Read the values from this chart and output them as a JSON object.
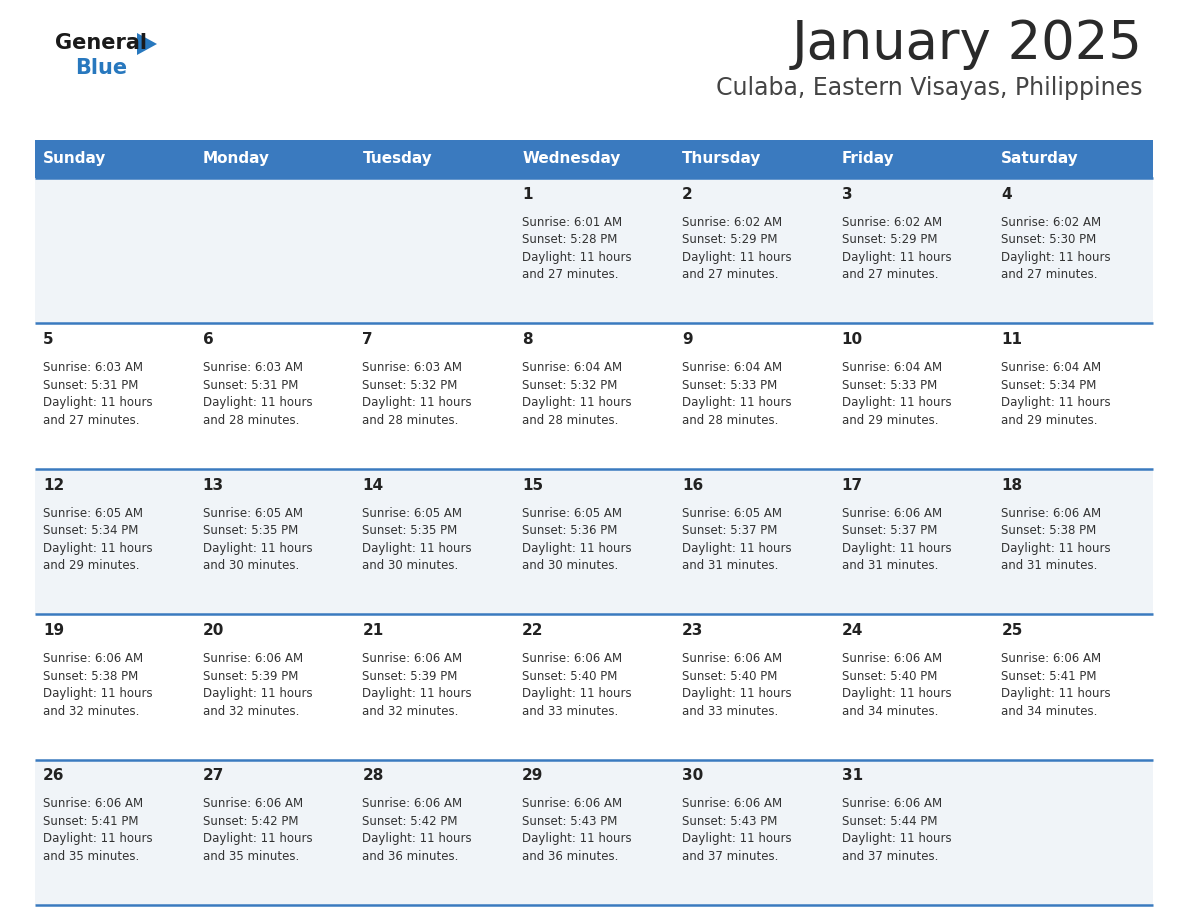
{
  "title": "January 2025",
  "subtitle": "Culaba, Eastern Visayas, Philippines",
  "days_of_week": [
    "Sunday",
    "Monday",
    "Tuesday",
    "Wednesday",
    "Thursday",
    "Friday",
    "Saturday"
  ],
  "header_bg": "#3a7abf",
  "header_text_color": "#ffffff",
  "cell_bg_row0": "#f0f4f8",
  "cell_bg_row1": "#ffffff",
  "row_line_color": "#3a7abf",
  "title_color": "#2a2a2a",
  "subtitle_color": "#444444",
  "day_num_color": "#222222",
  "cell_text_color": "#333333",
  "logo_general_color": "#1a1a1a",
  "logo_blue_color": "#2878be",
  "calendar_data": [
    {
      "day": 1,
      "col": 3,
      "row": 0,
      "sunrise": "6:01 AM",
      "sunset": "5:28 PM",
      "daylight_hours": 11,
      "daylight_minutes": 27
    },
    {
      "day": 2,
      "col": 4,
      "row": 0,
      "sunrise": "6:02 AM",
      "sunset": "5:29 PM",
      "daylight_hours": 11,
      "daylight_minutes": 27
    },
    {
      "day": 3,
      "col": 5,
      "row": 0,
      "sunrise": "6:02 AM",
      "sunset": "5:29 PM",
      "daylight_hours": 11,
      "daylight_minutes": 27
    },
    {
      "day": 4,
      "col": 6,
      "row": 0,
      "sunrise": "6:02 AM",
      "sunset": "5:30 PM",
      "daylight_hours": 11,
      "daylight_minutes": 27
    },
    {
      "day": 5,
      "col": 0,
      "row": 1,
      "sunrise": "6:03 AM",
      "sunset": "5:31 PM",
      "daylight_hours": 11,
      "daylight_minutes": 27
    },
    {
      "day": 6,
      "col": 1,
      "row": 1,
      "sunrise": "6:03 AM",
      "sunset": "5:31 PM",
      "daylight_hours": 11,
      "daylight_minutes": 28
    },
    {
      "day": 7,
      "col": 2,
      "row": 1,
      "sunrise": "6:03 AM",
      "sunset": "5:32 PM",
      "daylight_hours": 11,
      "daylight_minutes": 28
    },
    {
      "day": 8,
      "col": 3,
      "row": 1,
      "sunrise": "6:04 AM",
      "sunset": "5:32 PM",
      "daylight_hours": 11,
      "daylight_minutes": 28
    },
    {
      "day": 9,
      "col": 4,
      "row": 1,
      "sunrise": "6:04 AM",
      "sunset": "5:33 PM",
      "daylight_hours": 11,
      "daylight_minutes": 28
    },
    {
      "day": 10,
      "col": 5,
      "row": 1,
      "sunrise": "6:04 AM",
      "sunset": "5:33 PM",
      "daylight_hours": 11,
      "daylight_minutes": 29
    },
    {
      "day": 11,
      "col": 6,
      "row": 1,
      "sunrise": "6:04 AM",
      "sunset": "5:34 PM",
      "daylight_hours": 11,
      "daylight_minutes": 29
    },
    {
      "day": 12,
      "col": 0,
      "row": 2,
      "sunrise": "6:05 AM",
      "sunset": "5:34 PM",
      "daylight_hours": 11,
      "daylight_minutes": 29
    },
    {
      "day": 13,
      "col": 1,
      "row": 2,
      "sunrise": "6:05 AM",
      "sunset": "5:35 PM",
      "daylight_hours": 11,
      "daylight_minutes": 30
    },
    {
      "day": 14,
      "col": 2,
      "row": 2,
      "sunrise": "6:05 AM",
      "sunset": "5:35 PM",
      "daylight_hours": 11,
      "daylight_minutes": 30
    },
    {
      "day": 15,
      "col": 3,
      "row": 2,
      "sunrise": "6:05 AM",
      "sunset": "5:36 PM",
      "daylight_hours": 11,
      "daylight_minutes": 30
    },
    {
      "day": 16,
      "col": 4,
      "row": 2,
      "sunrise": "6:05 AM",
      "sunset": "5:37 PM",
      "daylight_hours": 11,
      "daylight_minutes": 31
    },
    {
      "day": 17,
      "col": 5,
      "row": 2,
      "sunrise": "6:06 AM",
      "sunset": "5:37 PM",
      "daylight_hours": 11,
      "daylight_minutes": 31
    },
    {
      "day": 18,
      "col": 6,
      "row": 2,
      "sunrise": "6:06 AM",
      "sunset": "5:38 PM",
      "daylight_hours": 11,
      "daylight_minutes": 31
    },
    {
      "day": 19,
      "col": 0,
      "row": 3,
      "sunrise": "6:06 AM",
      "sunset": "5:38 PM",
      "daylight_hours": 11,
      "daylight_minutes": 32
    },
    {
      "day": 20,
      "col": 1,
      "row": 3,
      "sunrise": "6:06 AM",
      "sunset": "5:39 PM",
      "daylight_hours": 11,
      "daylight_minutes": 32
    },
    {
      "day": 21,
      "col": 2,
      "row": 3,
      "sunrise": "6:06 AM",
      "sunset": "5:39 PM",
      "daylight_hours": 11,
      "daylight_minutes": 32
    },
    {
      "day": 22,
      "col": 3,
      "row": 3,
      "sunrise": "6:06 AM",
      "sunset": "5:40 PM",
      "daylight_hours": 11,
      "daylight_minutes": 33
    },
    {
      "day": 23,
      "col": 4,
      "row": 3,
      "sunrise": "6:06 AM",
      "sunset": "5:40 PM",
      "daylight_hours": 11,
      "daylight_minutes": 33
    },
    {
      "day": 24,
      "col": 5,
      "row": 3,
      "sunrise": "6:06 AM",
      "sunset": "5:40 PM",
      "daylight_hours": 11,
      "daylight_minutes": 34
    },
    {
      "day": 25,
      "col": 6,
      "row": 3,
      "sunrise": "6:06 AM",
      "sunset": "5:41 PM",
      "daylight_hours": 11,
      "daylight_minutes": 34
    },
    {
      "day": 26,
      "col": 0,
      "row": 4,
      "sunrise": "6:06 AM",
      "sunset": "5:41 PM",
      "daylight_hours": 11,
      "daylight_minutes": 35
    },
    {
      "day": 27,
      "col": 1,
      "row": 4,
      "sunrise": "6:06 AM",
      "sunset": "5:42 PM",
      "daylight_hours": 11,
      "daylight_minutes": 35
    },
    {
      "day": 28,
      "col": 2,
      "row": 4,
      "sunrise": "6:06 AM",
      "sunset": "5:42 PM",
      "daylight_hours": 11,
      "daylight_minutes": 36
    },
    {
      "day": 29,
      "col": 3,
      "row": 4,
      "sunrise": "6:06 AM",
      "sunset": "5:43 PM",
      "daylight_hours": 11,
      "daylight_minutes": 36
    },
    {
      "day": 30,
      "col": 4,
      "row": 4,
      "sunrise": "6:06 AM",
      "sunset": "5:43 PM",
      "daylight_hours": 11,
      "daylight_minutes": 37
    },
    {
      "day": 31,
      "col": 5,
      "row": 4,
      "sunrise": "6:06 AM",
      "sunset": "5:44 PM",
      "daylight_hours": 11,
      "daylight_minutes": 37
    }
  ]
}
